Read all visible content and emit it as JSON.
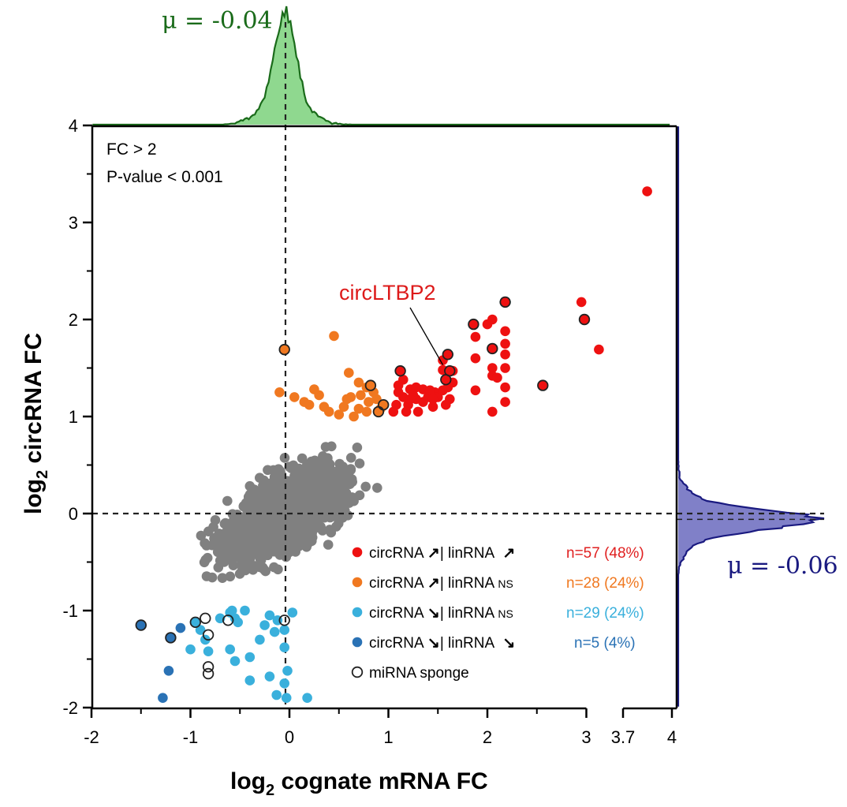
{
  "chart_data": {
    "type": "scatter",
    "xlabel": {
      "prefix": "log",
      "sub": "2",
      "suffix": " cognate mRNA FC"
    },
    "ylabel": {
      "prefix": "log",
      "sub": "2",
      "suffix": " circRNA  FC"
    },
    "xlim": [
      -2,
      4.1
    ],
    "ylim": [
      -2,
      4
    ],
    "x_axis_break": [
      3.0,
      3.7
    ],
    "x_ticks": [
      "-2",
      "-1",
      "0",
      "1",
      "2",
      "3",
      "3.7",
      "4"
    ],
    "y_ticks": [
      "-2",
      "-1",
      "0",
      "1",
      "2",
      "3",
      "4"
    ],
    "criteria": [
      "FC > 2",
      "P-value < 0.001"
    ],
    "annotation": {
      "text": "circLTBP2",
      "x": 1.55,
      "y": 1.5
    },
    "marginal_top": {
      "mu_label": "μ = -0.04",
      "mu": -0.04,
      "color": "#1a6b1a",
      "fill": "#8fd88f"
    },
    "marginal_right": {
      "mu_label": "μ = -0.06",
      "mu": -0.06,
      "color": "#1a1a80",
      "fill": "#8080c8"
    },
    "colors": {
      "up_up": "#ee1111",
      "up_ns": "#f07820",
      "down_ns": "#3ab0dc",
      "down_down": "#2a72b5",
      "background": "#808080"
    },
    "legend": [
      {
        "key": "up_up",
        "label": "circRNA ↗| linRNA ↗",
        "a": "circRNA ",
        "b": "↗",
        "c": "| linRNA ",
        "d": "",
        "e": "↗",
        "count": "n=57 (48%)"
      },
      {
        "key": "up_ns",
        "label": "circRNA ↗| linRNA NS",
        "a": "circRNA ",
        "b": "↗",
        "c": "| linRNA ",
        "d": "NS",
        "e": "",
        "count": "n=28 (24%)"
      },
      {
        "key": "down_ns",
        "label": "circRNA ↘| linRNA NS",
        "a": "circRNA ",
        "b": "↘",
        "c": "| linRNA ",
        "d": "NS",
        "e": "",
        "count": "n=29 (24%)"
      },
      {
        "key": "down_down",
        "label": "circRNA ↘| linRNA ↘",
        "a": "circRNA ",
        "b": "↘",
        "c": "| linRNA ",
        "d": "",
        "e": "↘",
        "count": "n=5 (4%)"
      },
      {
        "key": "sponge",
        "label": "miRNA sponge",
        "count": ""
      }
    ],
    "series": [
      {
        "key": "up_up",
        "points": [
          [
            3.85,
            3.32
          ],
          [
            2.95,
            2.18
          ],
          [
            2.98,
            2.0
          ],
          [
            3.55,
            1.69
          ],
          [
            2.18,
            2.18
          ],
          [
            2.0,
            1.95
          ],
          [
            1.86,
            1.95
          ],
          [
            2.05,
            2.0
          ],
          [
            2.18,
            1.88
          ],
          [
            2.18,
            1.75
          ],
          [
            2.18,
            1.64
          ],
          [
            2.18,
            1.5
          ],
          [
            2.18,
            1.3
          ],
          [
            2.18,
            1.15
          ],
          [
            2.05,
            1.7
          ],
          [
            2.05,
            1.5
          ],
          [
            2.05,
            1.42
          ],
          [
            2.05,
            1.05
          ],
          [
            2.1,
            1.4
          ],
          [
            1.88,
            1.82
          ],
          [
            1.88,
            1.6
          ],
          [
            1.88,
            1.27
          ],
          [
            2.56,
            1.32
          ],
          [
            1.6,
            1.64
          ],
          [
            1.55,
            1.58
          ],
          [
            1.55,
            1.48
          ],
          [
            1.58,
            1.38
          ],
          [
            1.62,
            1.47
          ],
          [
            1.65,
            1.47
          ],
          [
            1.6,
            1.3
          ],
          [
            1.62,
            1.18
          ],
          [
            1.58,
            1.12
          ],
          [
            1.47,
            1.25
          ],
          [
            1.45,
            1.1
          ],
          [
            1.4,
            1.2
          ],
          [
            1.35,
            1.28
          ],
          [
            1.3,
            1.05
          ],
          [
            1.28,
            1.18
          ],
          [
            1.22,
            1.28
          ],
          [
            1.2,
            1.12
          ],
          [
            1.15,
            1.2
          ],
          [
            1.12,
            1.47
          ],
          [
            1.15,
            1.38
          ],
          [
            1.1,
            1.25
          ],
          [
            1.08,
            1.12
          ],
          [
            1.05,
            1.05
          ],
          [
            1.1,
            1.32
          ],
          [
            1.25,
            1.22
          ],
          [
            1.35,
            1.15
          ],
          [
            1.5,
            1.2
          ],
          [
            1.42,
            1.27
          ],
          [
            1.18,
            1.05
          ],
          [
            1.28,
            1.3
          ],
          [
            1.22,
            1.18
          ],
          [
            1.55,
            1.27
          ],
          [
            1.45,
            1.18
          ],
          [
            1.65,
            1.35
          ]
        ]
      },
      {
        "key": "up_ns",
        "points": [
          [
            -0.05,
            1.69
          ],
          [
            0.45,
            1.83
          ],
          [
            0.6,
            1.45
          ],
          [
            0.7,
            1.35
          ],
          [
            0.62,
            1.2
          ],
          [
            0.78,
            1.3
          ],
          [
            0.85,
            1.25
          ],
          [
            0.8,
            1.15
          ],
          [
            0.7,
            1.08
          ],
          [
            0.55,
            1.1
          ],
          [
            0.4,
            1.05
          ],
          [
            0.2,
            1.12
          ],
          [
            0.15,
            1.15
          ],
          [
            0.05,
            1.2
          ],
          [
            -0.1,
            1.25
          ],
          [
            0.3,
            1.22
          ],
          [
            0.82,
            1.32
          ],
          [
            0.88,
            1.18
          ],
          [
            0.78,
            1.05
          ],
          [
            0.9,
            1.05
          ],
          [
            0.65,
            1.0
          ],
          [
            0.5,
            1.02
          ],
          [
            0.25,
            1.28
          ],
          [
            0.35,
            1.1
          ],
          [
            0.58,
            1.18
          ],
          [
            0.72,
            1.22
          ],
          [
            0.92,
            1.08
          ],
          [
            0.95,
            1.12
          ]
        ]
      },
      {
        "key": "down_ns",
        "points": [
          [
            -0.6,
            -1.02
          ],
          [
            -0.55,
            -1.08
          ],
          [
            -0.52,
            -1.12
          ],
          [
            -0.58,
            -1.0
          ],
          [
            -0.7,
            -1.08
          ],
          [
            -0.95,
            -1.12
          ],
          [
            -0.9,
            -1.2
          ],
          [
            -0.85,
            -1.3
          ],
          [
            -1.0,
            -1.4
          ],
          [
            -0.82,
            -1.42
          ],
          [
            -0.6,
            -1.4
          ],
          [
            -0.55,
            -1.52
          ],
          [
            -0.4,
            -1.48
          ],
          [
            -0.4,
            -1.72
          ],
          [
            -0.2,
            -1.68
          ],
          [
            -0.25,
            -1.15
          ],
          [
            -0.2,
            -1.05
          ],
          [
            -0.12,
            -1.1
          ],
          [
            -0.15,
            -1.22
          ],
          [
            -0.05,
            -1.2
          ],
          [
            -0.05,
            -1.38
          ],
          [
            -0.02,
            -1.62
          ],
          [
            -0.05,
            -1.75
          ],
          [
            -0.13,
            -1.87
          ],
          [
            -0.03,
            -1.9
          ],
          [
            0.18,
            -1.9
          ],
          [
            0.03,
            -1.02
          ],
          [
            -0.3,
            -1.3
          ],
          [
            -0.45,
            -1.0
          ]
        ]
      },
      {
        "key": "down_down",
        "points": [
          [
            -1.5,
            -1.15
          ],
          [
            -1.2,
            -1.28
          ],
          [
            -1.1,
            -1.18
          ],
          [
            -1.22,
            -1.62
          ],
          [
            -1.28,
            -1.9
          ]
        ]
      },
      {
        "key": "sponge",
        "points": [
          [
            2.18,
            2.18
          ],
          [
            1.86,
            1.95
          ],
          [
            2.98,
            2.0
          ],
          [
            2.05,
            1.7
          ],
          [
            2.56,
            1.32
          ],
          [
            1.6,
            1.64
          ],
          [
            1.62,
            1.47
          ],
          [
            1.58,
            1.38
          ],
          [
            1.12,
            1.47
          ],
          [
            -0.05,
            1.69
          ],
          [
            0.82,
            1.32
          ],
          [
            0.9,
            1.05
          ],
          [
            0.95,
            1.12
          ],
          [
            -1.5,
            -1.15
          ],
          [
            -1.2,
            -1.28
          ],
          [
            -0.95,
            -1.12
          ],
          [
            -0.85,
            -1.08
          ],
          [
            -0.82,
            -1.25
          ],
          [
            -0.82,
            -1.58
          ],
          [
            -0.82,
            -1.65
          ],
          [
            -0.62,
            -1.1
          ],
          [
            -0.05,
            -1.1
          ]
        ]
      }
    ]
  }
}
